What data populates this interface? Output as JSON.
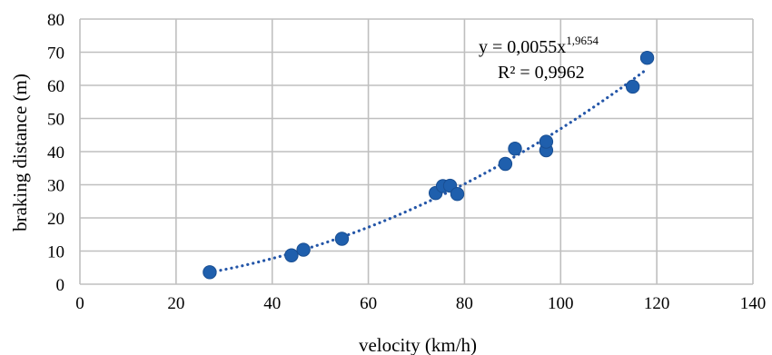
{
  "chart_data": {
    "type": "scatter",
    "xlabel": "velocity (km/h)",
    "ylabel": "braking distance (m)",
    "xlim": [
      0,
      140
    ],
    "ylim": [
      0,
      80
    ],
    "x_ticks": [
      "0",
      "20",
      "40",
      "60",
      "80",
      "100",
      "120",
      "140"
    ],
    "y_ticks": [
      "0",
      "10",
      "20",
      "30",
      "40",
      "50",
      "60",
      "70",
      "80"
    ],
    "grid": true,
    "marker_color": "#1f5fad",
    "trendline_color": "#2456a8",
    "points": [
      {
        "x": 27,
        "y": 3.6
      },
      {
        "x": 44,
        "y": 8.7
      },
      {
        "x": 46.5,
        "y": 10.4
      },
      {
        "x": 54.5,
        "y": 13.7
      },
      {
        "x": 74,
        "y": 27.5
      },
      {
        "x": 75.5,
        "y": 29.6
      },
      {
        "x": 77,
        "y": 29.7
      },
      {
        "x": 78.5,
        "y": 27.2
      },
      {
        "x": 88.5,
        "y": 36.3
      },
      {
        "x": 90.5,
        "y": 40.9
      },
      {
        "x": 97,
        "y": 40.4
      },
      {
        "x": 97,
        "y": 43
      },
      {
        "x": 115,
        "y": 59.6
      },
      {
        "x": 118,
        "y": 68.3
      }
    ],
    "trendline": {
      "type": "power",
      "coefficient": 0.0055,
      "exponent": 1.9654,
      "x_range": [
        27,
        118
      ],
      "equation_base": "y = 0,0055x",
      "equation_exponent": "1,9654",
      "r_squared": "R² = 0,9962"
    }
  }
}
